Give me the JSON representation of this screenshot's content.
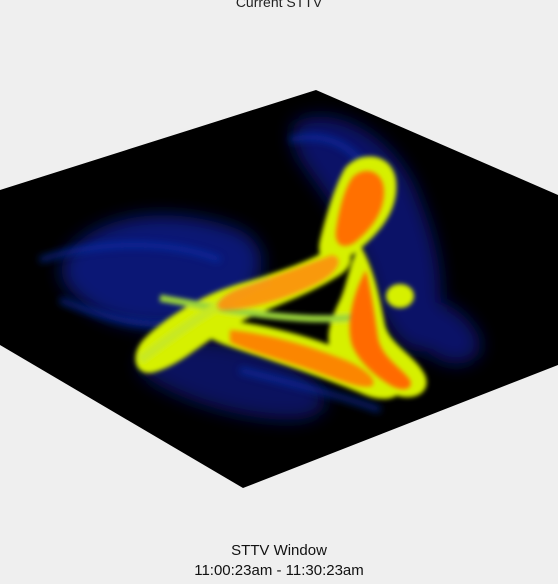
{
  "top_label": "Current STTV",
  "caption": {
    "title": "STTV Window",
    "range": "11:00:23am - 11:30:23am"
  },
  "colors": {
    "background": "#efefef",
    "volume_background": "#000000",
    "low_density": "#0a1a8c",
    "mid_density": "#d8f000",
    "high_density": "#ff6a00"
  }
}
